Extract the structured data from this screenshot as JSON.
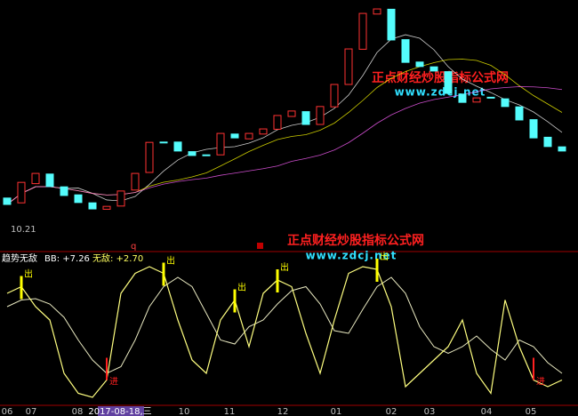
{
  "chart_data": {
    "type": "candlestick",
    "price_label": "10.21",
    "open": [
      10.95,
      10.8,
      11.4,
      11.7,
      11.3,
      11.05,
      10.8,
      10.6,
      10.7,
      11.2,
      11.75,
      12.7,
      12.7,
      12.4,
      12.3,
      12.3,
      12.95,
      12.8,
      12.95,
      13.1,
      13.5,
      13.65,
      13.25,
      13.8,
      14.5,
      15.6,
      16.7,
      16.85,
      15.9,
      15.2,
      15.05,
      14.9,
      14.2,
      13.95,
      14.1,
      14.05,
      13.8,
      13.4,
      12.85,
      12.55
    ],
    "close": [
      10.75,
      11.44,
      11.72,
      11.31,
      11.03,
      10.81,
      10.61,
      10.69,
      11.17,
      11.72,
      12.69,
      12.69,
      12.42,
      12.28,
      12.28,
      12.97,
      12.83,
      12.97,
      13.11,
      13.53,
      13.67,
      13.25,
      13.81,
      14.5,
      15.61,
      16.72,
      16.86,
      15.89,
      15.19,
      15.06,
      14.92,
      14.22,
      13.94,
      14.08,
      14.08,
      13.81,
      13.39,
      12.83,
      12.56,
      12.42
    ],
    "indicator": {
      "name": "趋势无敌",
      "bb": "BB: +7.26",
      "wd": "无敌: +2.70",
      "fast": [
        80,
        85,
        70,
        60,
        20,
        5,
        2,
        15,
        80,
        95,
        100,
        95,
        60,
        30,
        20,
        60,
        75,
        40,
        80,
        90,
        85,
        50,
        20,
        60,
        95,
        100,
        98,
        70,
        10,
        20,
        30,
        40,
        60,
        20,
        5,
        75,
        40,
        15,
        10,
        15
      ],
      "slow": [
        70,
        75,
        76,
        72,
        62,
        45,
        30,
        20,
        25,
        45,
        70,
        85,
        92,
        85,
        65,
        45,
        42,
        55,
        60,
        72,
        82,
        85,
        72,
        52,
        50,
        68,
        85,
        92,
        80,
        55,
        40,
        35,
        40,
        48,
        38,
        30,
        45,
        40,
        28,
        20
      ],
      "sell_signals": [
        1,
        11,
        16,
        19,
        26
      ],
      "buy_signals": [
        7,
        37
      ],
      "sell_label": "出",
      "buy_label": "进"
    },
    "x_labels": [
      "06",
      "07",
      "08",
      "2017-08-18,三",
      "10",
      "11",
      "12",
      "01",
      "02",
      "03",
      "04",
      "05"
    ],
    "marker": "q",
    "watermark": {
      "title": "正点财经炒股指标公式网",
      "url": "www.zdcj.net"
    }
  }
}
